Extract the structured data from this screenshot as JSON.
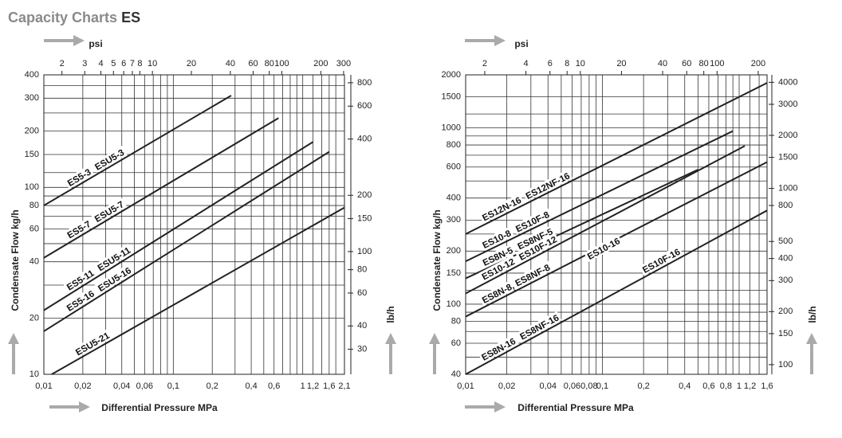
{
  "header": {
    "title": "Capacity Charts",
    "model": "ES"
  },
  "chart_data": [
    {
      "type": "line",
      "xscale": "log",
      "yscale": "log",
      "grid": true,
      "xlabel": "Differential Pressure MPa",
      "ylabel": "Condensate Flow kg/h",
      "x2label": "psi",
      "y2label": "lb/h",
      "xlim": [
        0.01,
        2.1
      ],
      "xticks": [
        {
          "value": 0.01,
          "label": "0,01"
        },
        {
          "value": 0.02,
          "label": "0,02"
        },
        {
          "value": 0.04,
          "label": "0,04"
        },
        {
          "value": 0.06,
          "label": "0,06"
        },
        {
          "value": 0.1,
          "label": "0,1"
        },
        {
          "value": 0.2,
          "label": "0,2"
        },
        {
          "value": 0.4,
          "label": "0,4"
        },
        {
          "value": 0.6,
          "label": "0,6"
        },
        1,
        {
          "value": 1.2,
          "label": "1,2"
        },
        {
          "value": 1.6,
          "label": "1,6"
        },
        {
          "value": 2.1,
          "label": "2,1"
        }
      ],
      "xminor": [
        0.03,
        0.05,
        0.07,
        0.08,
        0.09,
        0.3,
        0.5,
        0.7,
        0.8,
        0.9,
        1.4,
        1.8
      ],
      "x2lim": [
        1.45,
        304.58
      ],
      "x2ticks": [
        2,
        3,
        4,
        5,
        6,
        7,
        8,
        10,
        20,
        40,
        60,
        80,
        100,
        200,
        300
      ],
      "ylim": [
        10,
        400
      ],
      "yticks": [
        10,
        20,
        40,
        60,
        80,
        100,
        150,
        200,
        300,
        400
      ],
      "yminor": [
        30,
        50,
        70,
        90,
        120,
        250,
        350
      ],
      "y2lim": [
        22.05,
        881.85
      ],
      "y2ticks": [
        30,
        40,
        60,
        80,
        100,
        150,
        200,
        400,
        600,
        800
      ],
      "color": "#222222",
      "series": [
        {
          "labels": [
            "ES5-3",
            "ESU5-3"
          ],
          "x": [
            0.01,
            0.28
          ],
          "values": [
            80,
            310
          ]
        },
        {
          "labels": [
            "ES5-7",
            "ESU5-7"
          ],
          "x": [
            0.01,
            0.65
          ],
          "values": [
            42,
            235
          ]
        },
        {
          "labels": [
            "ES5-11",
            "ESU5-11"
          ],
          "x": [
            0.01,
            1.2
          ],
          "values": [
            22,
            175
          ]
        },
        {
          "labels": [
            "ES5-16",
            "ESU5-16"
          ],
          "x": [
            0.01,
            1.6
          ],
          "values": [
            17,
            155
          ]
        },
        {
          "labels": [
            "ESU5-21"
          ],
          "x": [
            0.0115,
            2.1
          ],
          "values": [
            10,
            78
          ]
        }
      ]
    },
    {
      "type": "line",
      "xscale": "log",
      "yscale": "log",
      "grid": true,
      "xlabel": "Differential Pressure MPa",
      "ylabel": "Condensate Flow kg/h",
      "x2label": "psi",
      "y2label": "lb/h",
      "xlim": [
        0.01,
        1.6
      ],
      "xticks": [
        {
          "value": 0.01,
          "label": "0,01"
        },
        {
          "value": 0.02,
          "label": "0,02"
        },
        {
          "value": 0.04,
          "label": "0,04"
        },
        {
          "value": 0.06,
          "label": "0,06"
        },
        {
          "value": 0.08,
          "label": "0,08"
        },
        {
          "value": 0.1,
          "label": "0,1"
        },
        {
          "value": 0.2,
          "label": "0,2"
        },
        {
          "value": 0.4,
          "label": "0,4"
        },
        {
          "value": 0.6,
          "label": "0,6"
        },
        {
          "value": 0.8,
          "label": "0,8"
        },
        1,
        {
          "value": 1.2,
          "label": "1,2"
        },
        {
          "value": 1.6,
          "label": "1,6"
        }
      ],
      "xminor": [
        0.03,
        0.05,
        0.07,
        0.09,
        0.3,
        0.5,
        0.7,
        0.9,
        1.4
      ],
      "x2lim": [
        1.45,
        232.06
      ],
      "x2ticks": [
        2,
        4,
        6,
        8,
        10,
        20,
        40,
        60,
        80,
        100,
        200
      ],
      "ylim": [
        40,
        2000
      ],
      "yticks": [
        40,
        60,
        80,
        100,
        150,
        200,
        300,
        400,
        600,
        800,
        1000,
        1500,
        2000
      ],
      "yminor": [
        50,
        70,
        90,
        120,
        250,
        500,
        700,
        900,
        1200
      ],
      "y2lim": [
        88.18,
        4409.2
      ],
      "y2ticks": [
        100,
        150,
        200,
        300,
        400,
        500,
        800,
        1000,
        1500,
        2000,
        3000,
        4000
      ],
      "color": "#222222",
      "series": [
        {
          "labels": [
            "ES12N-16",
            "ES12NF-16"
          ],
          "x": [
            0.01,
            1.6
          ],
          "values": [
            250,
            1800
          ]
        },
        {
          "labels": [
            "ES10-8",
            "ES10F-8"
          ],
          "x": [
            0.01,
            0.9
          ],
          "values": [
            175,
            960
          ]
        },
        {
          "labels": [
            "ES8N-5",
            "ES8NF-5"
          ],
          "x": [
            0.01,
            0.5
          ],
          "values": [
            140,
            580
          ]
        },
        {
          "labels": [
            "ES10-12",
            "ES10F-12"
          ],
          "x": [
            0.01,
            1.1
          ],
          "values": [
            115,
            790
          ]
        },
        {
          "labels": [
            "ES8N-8, ES8NF-8"
          ],
          "x": [
            0.01,
            1.6
          ],
          "values": [
            85,
            640
          ]
        },
        {
          "labels": [
            "ES8N-16",
            "ES8NF-16",
            "ES10-16",
            "ES10F-16"
          ],
          "x": [
            0.01,
            1.6
          ],
          "values": [
            40,
            340
          ]
        }
      ]
    }
  ]
}
